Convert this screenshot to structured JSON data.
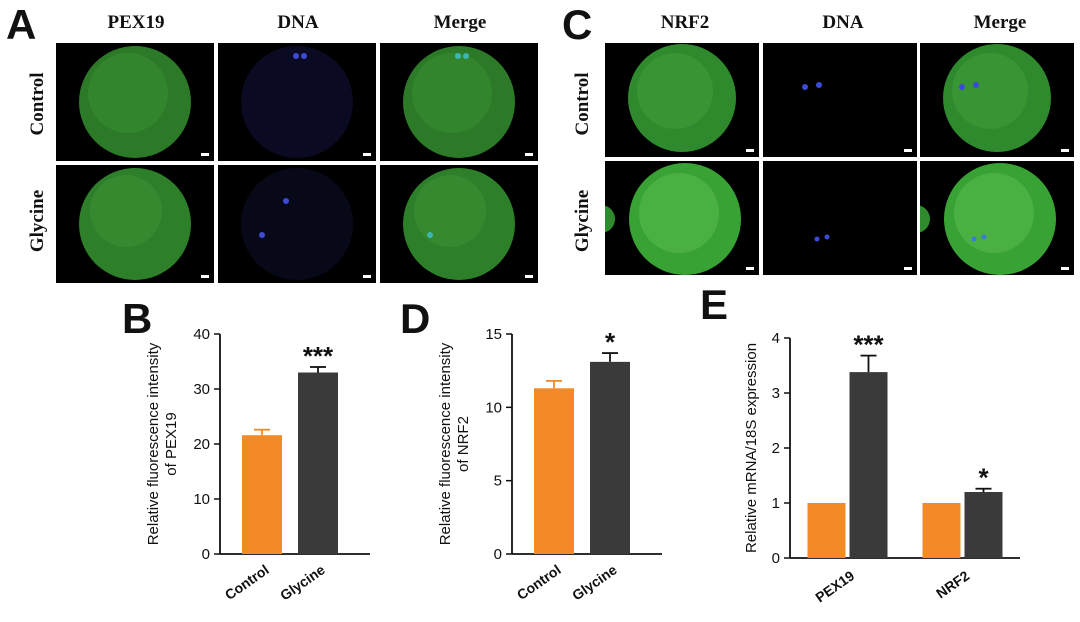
{
  "panel_letters": {
    "a": "A",
    "b": "B",
    "c": "C",
    "d": "D",
    "e": "E"
  },
  "panel_a": {
    "columns": [
      "PEX19",
      "DNA",
      "Merge"
    ],
    "rows": [
      "Control",
      "Glycine"
    ]
  },
  "panel_c": {
    "columns": [
      "NRF2",
      "DNA",
      "Merge"
    ],
    "rows": [
      "Control",
      "Glycine"
    ]
  },
  "colors": {
    "control": "#f28a25",
    "glycine": "#3a3a3a",
    "green": "#2f8a2a",
    "blue": "#3b4bd8"
  },
  "chart_data": [
    {
      "panel": "B",
      "type": "bar",
      "categories": [
        "Control",
        "Glycine"
      ],
      "values": [
        21.6,
        33.0
      ],
      "errors": [
        1.0,
        1.0
      ],
      "ylabel": "Relative fluorescence intensity of PEX19",
      "ylabel_lines": [
        "Relative fluorescence intensity",
        "of PEX19"
      ],
      "ylim": [
        0,
        40
      ],
      "yticks": [
        0,
        10,
        20,
        30,
        40
      ],
      "significance": [
        "",
        "***"
      ]
    },
    {
      "panel": "D",
      "type": "bar",
      "categories": [
        "Control",
        "Glycine"
      ],
      "values": [
        11.3,
        13.1
      ],
      "errors": [
        0.5,
        0.6
      ],
      "ylabel": "Relative fluorescence intensity of NRF2",
      "ylabel_lines": [
        "Relative fluorescence intensity",
        "of NRF2"
      ],
      "ylim": [
        0,
        15
      ],
      "yticks": [
        0,
        5,
        10,
        15
      ],
      "significance": [
        "",
        "*"
      ]
    },
    {
      "panel": "E",
      "type": "bar",
      "categories": [
        "PEX19",
        "NRF2"
      ],
      "series": [
        {
          "values": [
            1.0,
            1.0
          ],
          "errors": [
            0,
            0
          ]
        },
        {
          "values": [
            3.38,
            1.2
          ],
          "errors": [
            0.3,
            0.06
          ]
        }
      ],
      "ylabel": "Relative mRNA/18S expression",
      "ylim": [
        0,
        4
      ],
      "yticks": [
        0,
        1,
        2,
        3,
        4
      ],
      "significance": [
        "***",
        "*"
      ]
    }
  ]
}
